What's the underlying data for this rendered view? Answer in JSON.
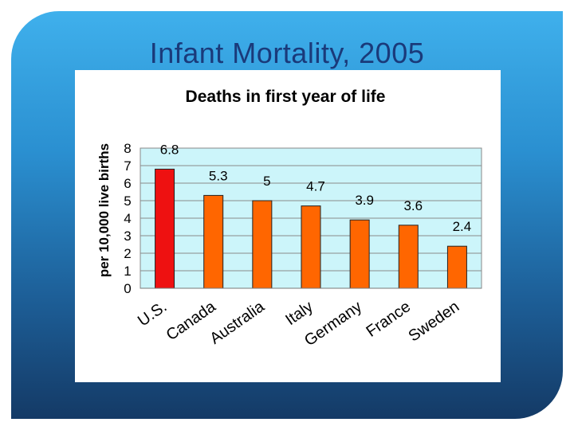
{
  "slide": {
    "title": "Infant Mortality, 2005"
  },
  "colors": {
    "highlight_bar": "#ee1111",
    "bar": "#ff6600",
    "plot_bg": "#ccf5fa",
    "grid": "#8a8a8a"
  },
  "chart_data": {
    "type": "bar",
    "title": "Deaths in first year of life",
    "xlabel": "",
    "ylabel": "per 10,000 live births",
    "ylim": [
      0,
      8
    ],
    "yticks": [
      "0",
      "1",
      "2",
      "3",
      "4",
      "5",
      "6",
      "7",
      "8"
    ],
    "grid": true,
    "categories": [
      "U.S.",
      "Canada",
      "Australia",
      "Italy",
      "Germany",
      "France",
      "Sweden"
    ],
    "values": [
      6.8,
      5.3,
      5,
      4.7,
      3.9,
      3.6,
      2.4
    ],
    "data_labels": [
      "6.8",
      "5.3",
      "5",
      "4.7",
      "3.9",
      "3.6",
      "2.4"
    ],
    "highlight_index": 0
  }
}
